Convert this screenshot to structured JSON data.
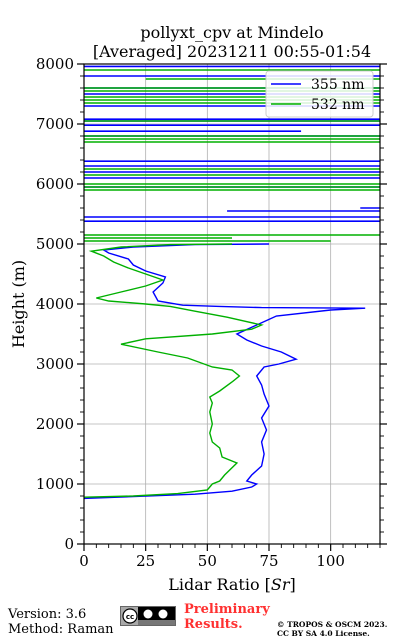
{
  "chart_data": {
    "type": "line",
    "title": "pollyxt_cpv at Mindelo",
    "subtitle": "[Averaged] 20231211 00:55-01:54",
    "xlabel": "Lidar Ratio [Sr]",
    "ylabel": "Height (m)",
    "xlim": [
      0,
      120
    ],
    "ylim": [
      0,
      8000
    ],
    "xticks": [
      0,
      25,
      50,
      75,
      100
    ],
    "yticks": [
      0,
      1000,
      2000,
      3000,
      4000,
      5000,
      6000,
      7000,
      8000
    ],
    "grid": true,
    "legend": "top-right",
    "series": [
      {
        "name": "355 nm",
        "color": "#0000ff",
        "points": [
          [
            0,
            760
          ],
          [
            20,
            790
          ],
          [
            45,
            830
          ],
          [
            60,
            880
          ],
          [
            68,
            950
          ],
          [
            70,
            1000
          ],
          [
            66,
            1050
          ],
          [
            68,
            1150
          ],
          [
            72,
            1300
          ],
          [
            73,
            1500
          ],
          [
            72,
            1700
          ],
          [
            74,
            1900
          ],
          [
            72,
            2100
          ],
          [
            75,
            2300
          ],
          [
            73,
            2500
          ],
          [
            72,
            2650
          ],
          [
            70,
            2800
          ],
          [
            73,
            2950
          ],
          [
            79,
            3000
          ],
          [
            86,
            3080
          ],
          [
            80,
            3200
          ],
          [
            72,
            3300
          ],
          [
            66,
            3400
          ],
          [
            62,
            3500
          ],
          [
            70,
            3650
          ],
          [
            78,
            3800
          ],
          [
            100,
            3900
          ],
          [
            114,
            3930
          ],
          [
            72,
            3940
          ],
          [
            55,
            3960
          ],
          [
            40,
            3980
          ],
          [
            30,
            4050
          ],
          [
            28,
            4200
          ],
          [
            32,
            4350
          ],
          [
            33,
            4450
          ],
          [
            25,
            4550
          ],
          [
            20,
            4650
          ],
          [
            18,
            4750
          ],
          [
            10,
            4850
          ],
          [
            8,
            4900
          ],
          [
            20,
            4950
          ],
          [
            45,
            4990
          ],
          [
            75,
            5000
          ]
        ],
        "upper_segments": [
          [
            5380,
            0,
            120
          ],
          [
            5450,
            0,
            120
          ],
          [
            5550,
            58,
            120
          ],
          [
            5600,
            112,
            120
          ],
          [
            5950,
            0,
            120
          ],
          [
            6100,
            0,
            120
          ],
          [
            6200,
            0,
            120
          ],
          [
            6300,
            0,
            120
          ],
          [
            6380,
            0,
            120
          ],
          [
            6800,
            0,
            120
          ],
          [
            6880,
            0,
            88
          ],
          [
            6980,
            0,
            120
          ],
          [
            7050,
            0,
            120
          ],
          [
            7080,
            0,
            120
          ],
          [
            7300,
            0,
            120
          ],
          [
            7500,
            0,
            120
          ],
          [
            7600,
            0,
            120
          ],
          [
            7800,
            0,
            120
          ],
          [
            7960,
            0,
            120
          ]
        ]
      },
      {
        "name": "532 nm",
        "color": "#00b000",
        "points": [
          [
            0,
            780
          ],
          [
            20,
            800
          ],
          [
            38,
            840
          ],
          [
            50,
            900
          ],
          [
            52,
            1000
          ],
          [
            55,
            1050
          ],
          [
            57,
            1150
          ],
          [
            62,
            1350
          ],
          [
            56,
            1450
          ],
          [
            55,
            1600
          ],
          [
            52,
            1700
          ],
          [
            51,
            1850
          ],
          [
            52,
            2000
          ],
          [
            51,
            2200
          ],
          [
            52,
            2350
          ],
          [
            51,
            2450
          ],
          [
            55,
            2550
          ],
          [
            60,
            2700
          ],
          [
            63,
            2800
          ],
          [
            60,
            2900
          ],
          [
            52,
            2950
          ],
          [
            42,
            3100
          ],
          [
            30,
            3200
          ],
          [
            15,
            3330
          ],
          [
            25,
            3420
          ],
          [
            52,
            3500
          ],
          [
            68,
            3580
          ],
          [
            72,
            3650
          ],
          [
            58,
            3780
          ],
          [
            45,
            3880
          ],
          [
            35,
            3960
          ],
          [
            25,
            4000
          ],
          [
            10,
            4050
          ],
          [
            5,
            4100
          ],
          [
            15,
            4200
          ],
          [
            25,
            4300
          ],
          [
            32,
            4400
          ],
          [
            25,
            4500
          ],
          [
            18,
            4600
          ],
          [
            12,
            4700
          ],
          [
            8,
            4800
          ],
          [
            3,
            4880
          ],
          [
            15,
            4950
          ],
          [
            35,
            4990
          ],
          [
            60,
            5000
          ]
        ],
        "upper_segments": [
          [
            5050,
            0,
            100
          ],
          [
            5100,
            0,
            60
          ],
          [
            5150,
            0,
            120
          ],
          [
            5900,
            0,
            120
          ],
          [
            5950,
            0,
            120
          ],
          [
            6000,
            0,
            120
          ],
          [
            6150,
            0,
            120
          ],
          [
            6250,
            0,
            120
          ],
          [
            6700,
            0,
            120
          ],
          [
            6750,
            0,
            120
          ],
          [
            6800,
            0,
            120
          ],
          [
            7050,
            0,
            120
          ],
          [
            7350,
            0,
            120
          ],
          [
            7400,
            0,
            120
          ],
          [
            7450,
            0,
            120
          ],
          [
            7550,
            0,
            120
          ],
          [
            7600,
            0,
            120
          ],
          [
            7750,
            25,
            120
          ],
          [
            7900,
            0,
            120
          ]
        ]
      }
    ]
  },
  "footer": {
    "version": "Version: 3.6",
    "method": "Method: Raman",
    "preliminary": "Preliminary\nResults.",
    "copyright": "© TROPOS & OSCM 2023.\nCC BY SA 4.0 License."
  }
}
